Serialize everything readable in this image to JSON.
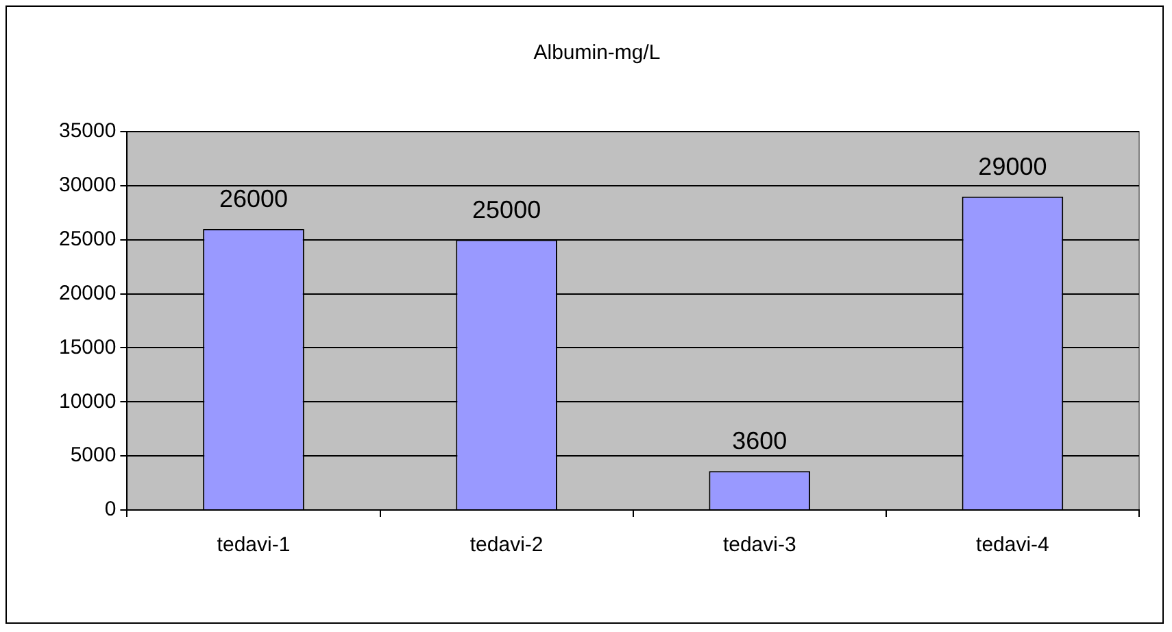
{
  "chart_data": {
    "type": "bar",
    "title": "Albumin-mg/L",
    "categories": [
      "tedavi-1",
      "tedavi-2",
      "tedavi-3",
      "tedavi-4"
    ],
    "values": [
      26000,
      25000,
      3600,
      29000
    ],
    "color": "#9999ff",
    "ylim": [
      0,
      35000
    ],
    "yticks": [
      0,
      5000,
      10000,
      15000,
      20000,
      25000,
      30000,
      35000
    ],
    "grid": "y",
    "legend": false,
    "data_labels": true
  }
}
